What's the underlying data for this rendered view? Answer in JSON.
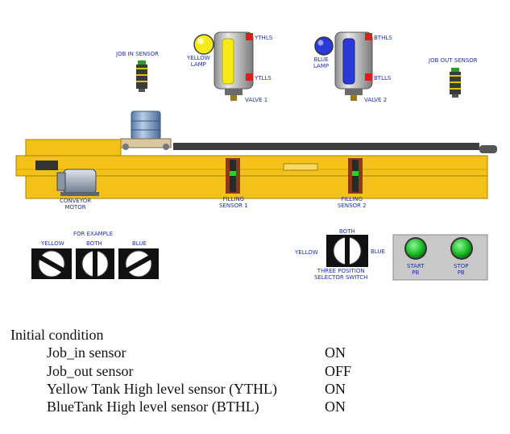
{
  "labels": {
    "job_in_sensor": "JOB IN SENSOR",
    "job_out_sensor": "JOB OUT SENSOR",
    "yellow_lamp": "YELLOW\nLAMP",
    "blue_lamp": "BLUE\nLAMP",
    "ythls": "YTHLS",
    "ytlls": "YTLLS",
    "bthls": "BTHLS",
    "btlls": "BTLLS",
    "valve1": "VALVE 1",
    "valve2": "VALVE 2",
    "conveyor_motor": "CONVEYOR\nMOTOR",
    "filling_sensor_1": "FILLING\nSENSOR 1",
    "filling_sensor_2": "FILLING\nSENSOR 2",
    "for_example": "FOR EXAMPLE",
    "ex_yellow": "YELLOW",
    "ex_both": "BOTH",
    "ex_blue": "BLUE",
    "sel_both": "BOTH",
    "sel_yellow": "YELLOW",
    "sel_blue": "BLUE",
    "selector_caption": "THREE POSITION\nSELECTOR SWITCH",
    "start_pb": "START\nPB",
    "stop_pb": "STOP\nPB"
  },
  "conditions": {
    "heading": "Initial condition",
    "rows": [
      {
        "name": "Job_in sensor",
        "state": "ON"
      },
      {
        "name": "Job_out sensor",
        "state": "OFF"
      },
      {
        "name": "Yellow Tank High level sensor (YTHL)",
        "state": "ON"
      },
      {
        "name": "BlueTank High level sensor (BTHL)",
        "state": "ON"
      }
    ]
  },
  "colors": {
    "accent_text": "#1f2fb0",
    "conveyor": "#f2c21b",
    "yellow_lamp": "#f7ea1a",
    "blue_lamp": "#2a3ad8",
    "button_green": "#1fbf2a"
  }
}
